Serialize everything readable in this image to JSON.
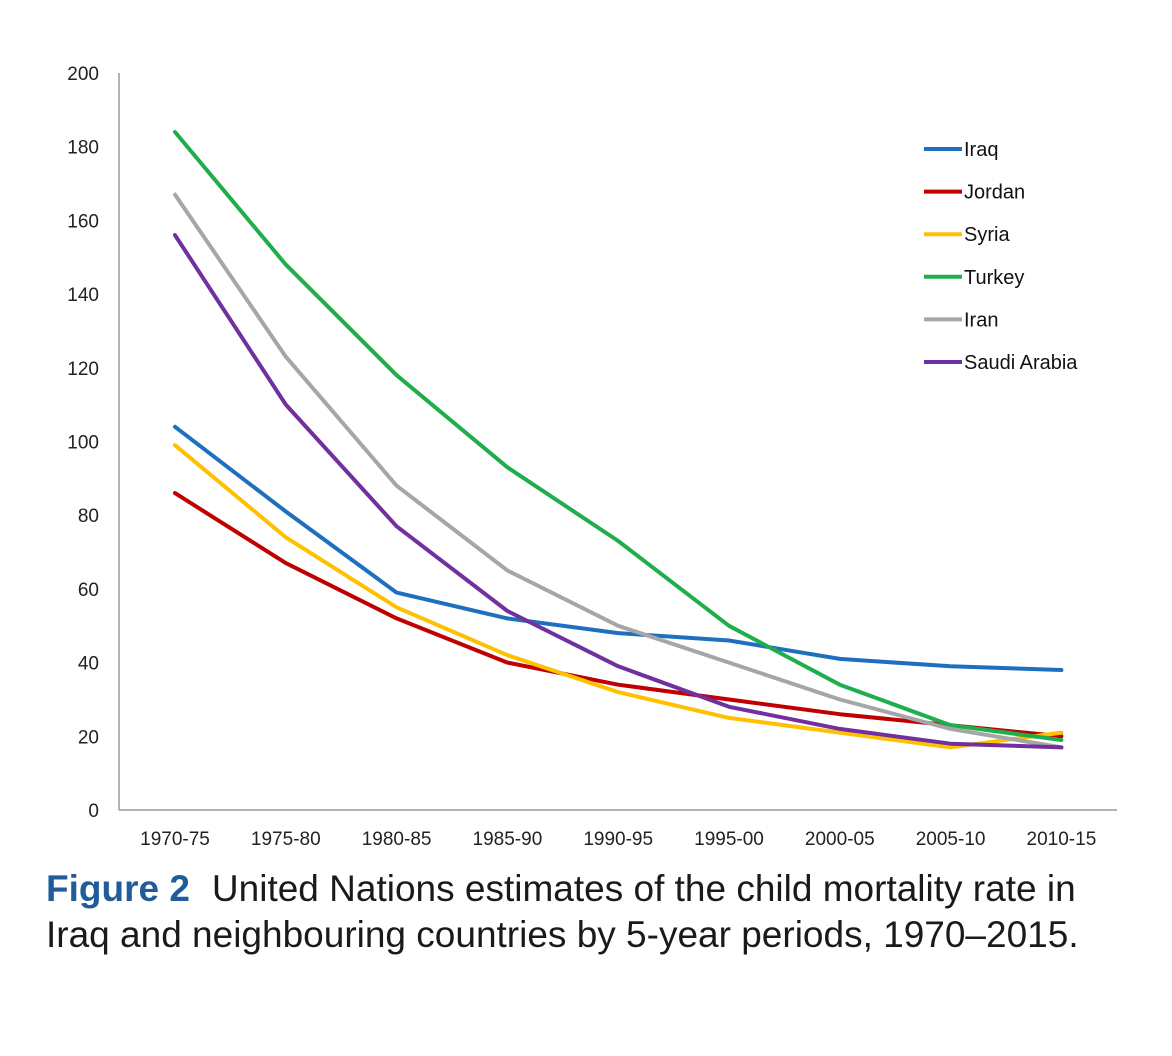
{
  "chart_data": {
    "type": "line",
    "title": "",
    "xlabel": "",
    "ylabel": "",
    "ylim": [
      0,
      200
    ],
    "yticks": [
      0,
      20,
      40,
      60,
      80,
      100,
      120,
      140,
      160,
      180,
      200
    ],
    "grid": false,
    "legend_position": "top-right",
    "categories": [
      "1970-75",
      "1975-80",
      "1980-85",
      "1985-90",
      "1990-95",
      "1995-00",
      "2000-05",
      "2005-10",
      "2010-15"
    ],
    "series": [
      {
        "name": "Iraq",
        "color": "#1f6fbf",
        "values": [
          104,
          81,
          59,
          52,
          48,
          46,
          41,
          39,
          38
        ]
      },
      {
        "name": "Jordan",
        "color": "#c00000",
        "values": [
          86,
          67,
          52,
          40,
          34,
          30,
          26,
          23,
          20
        ]
      },
      {
        "name": "Syria",
        "color": "#ffc000",
        "values": [
          99,
          74,
          55,
          42,
          32,
          25,
          21,
          17,
          21
        ]
      },
      {
        "name": "Turkey",
        "color": "#1fae4b",
        "values": [
          184,
          148,
          118,
          93,
          73,
          50,
          34,
          23,
          19
        ]
      },
      {
        "name": "Iran",
        "color": "#a6a6a6",
        "values": [
          167,
          123,
          88,
          65,
          50,
          40,
          30,
          22,
          17
        ]
      },
      {
        "name": "Saudi Arabia",
        "color": "#7030a0",
        "values": [
          156,
          110,
          77,
          54,
          39,
          28,
          22,
          18,
          17
        ]
      }
    ]
  },
  "caption": {
    "label": "Figure 2",
    "text": "United Nations estimates of the child mortality rate in Iraq and neighbouring countries by 5-year periods, 1970–2015."
  }
}
